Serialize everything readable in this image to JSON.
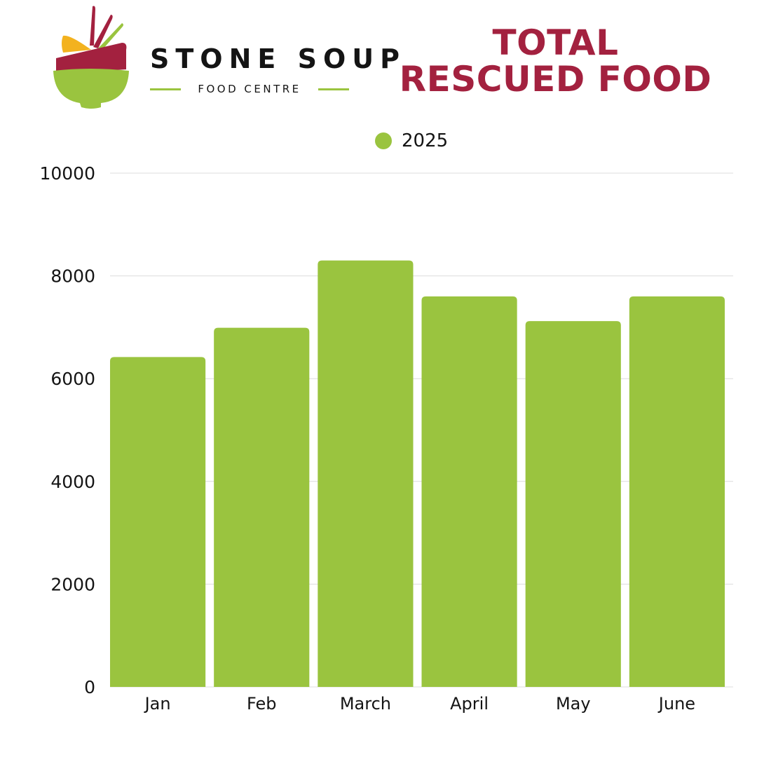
{
  "brand": {
    "name": "STONE SOUP",
    "subtitle": "FOOD CENTRE",
    "colors": {
      "green": "#9ac43f",
      "red": "#a3213f",
      "yellow": "#f3b21f"
    }
  },
  "chart_data": {
    "type": "bar",
    "title_lines": [
      "TOTAL",
      "RESCUED FOOD"
    ],
    "categories": [
      "Jan",
      "Feb",
      "March",
      "April",
      "May",
      "June"
    ],
    "series": [
      {
        "name": "2025",
        "values": [
          6420,
          6990,
          8300,
          7600,
          7120,
          7600
        ],
        "color": "#9ac43f"
      }
    ],
    "xlabel": "",
    "ylabel": "",
    "ylim": [
      0,
      10000
    ],
    "yticks": [
      "0",
      "2000",
      "4000",
      "6000",
      "8000",
      "10000"
    ],
    "grid": true,
    "legend_position": "top-center"
  }
}
